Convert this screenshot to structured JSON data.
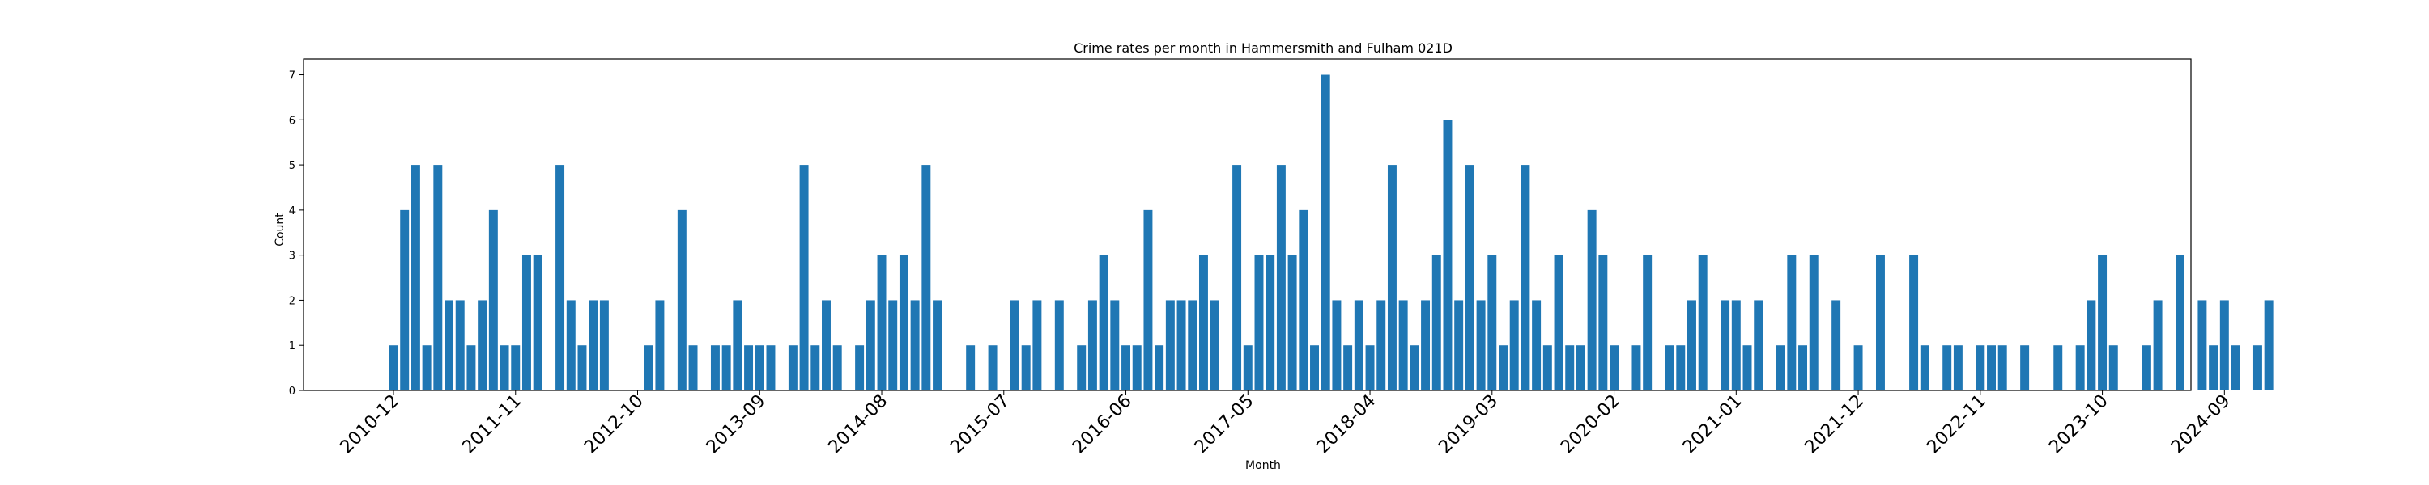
{
  "chart_data": {
    "type": "bar",
    "title": "Crime rates per month in Hammersmith and Fulham 021D",
    "xlabel": "Month",
    "ylabel": "Count",
    "ylim": [
      0,
      7.35
    ],
    "yticks": [
      0,
      1,
      2,
      3,
      4,
      5,
      6,
      7
    ],
    "xtick_labels": [
      "2010-12",
      "2011-11",
      "2012-10",
      "2013-09",
      "2014-08",
      "2015-07",
      "2016-06",
      "2017-05",
      "2018-04",
      "2019-03",
      "2020-02",
      "2021-01",
      "2021-12",
      "2022-11",
      "2023-10",
      "2024-09"
    ],
    "grid": false,
    "legend": "none",
    "bar_color": "#1f77b4",
    "months": [
      "2010-12",
      "2011-01",
      "2011-02",
      "2011-03",
      "2011-04",
      "2011-05",
      "2011-06",
      "2011-07",
      "2011-08",
      "2011-09",
      "2011-10",
      "2011-11",
      "2011-12",
      "2012-01",
      "2012-02",
      "2012-03",
      "2012-04",
      "2012-05",
      "2012-06",
      "2012-07",
      "2012-08",
      "2012-09",
      "2012-10",
      "2012-11",
      "2012-12",
      "2013-01",
      "2013-02",
      "2013-03",
      "2013-04",
      "2013-05",
      "2013-06",
      "2013-07",
      "2013-08",
      "2013-09",
      "2013-10",
      "2013-11",
      "2013-12",
      "2014-01",
      "2014-02",
      "2014-03",
      "2014-04",
      "2014-05",
      "2014-06",
      "2014-07",
      "2014-08",
      "2014-09",
      "2014-10",
      "2014-11",
      "2014-12",
      "2015-01",
      "2015-02",
      "2015-03",
      "2015-04",
      "2015-05",
      "2015-06",
      "2015-07",
      "2015-08",
      "2015-09",
      "2015-10",
      "2015-11",
      "2015-12",
      "2016-01",
      "2016-02",
      "2016-03",
      "2016-04",
      "2016-05",
      "2016-06",
      "2016-07",
      "2016-08",
      "2016-09",
      "2016-10",
      "2016-11",
      "2016-12",
      "2017-01",
      "2017-02",
      "2017-03",
      "2017-04",
      "2017-05",
      "2017-06",
      "2017-07",
      "2017-08",
      "2017-09",
      "2017-10",
      "2017-11",
      "2017-12",
      "2018-01",
      "2018-02",
      "2018-03",
      "2018-04",
      "2018-05",
      "2018-06",
      "2018-07",
      "2018-08",
      "2018-09",
      "2018-10",
      "2018-11",
      "2018-12",
      "2019-01",
      "2019-02",
      "2019-03",
      "2019-04",
      "2019-05",
      "2019-06",
      "2019-07",
      "2019-08",
      "2019-09",
      "2019-10",
      "2019-11",
      "2019-12",
      "2020-01",
      "2020-02",
      "2020-03",
      "2020-04",
      "2020-05",
      "2020-06",
      "2020-07",
      "2020-08",
      "2020-09",
      "2020-10",
      "2020-11",
      "2020-12",
      "2021-01",
      "2021-02",
      "2021-03",
      "2021-04",
      "2021-05",
      "2021-06",
      "2021-07",
      "2021-08",
      "2021-09",
      "2021-10",
      "2021-11",
      "2021-12",
      "2022-01",
      "2022-02",
      "2022-03",
      "2022-04",
      "2022-05",
      "2022-06",
      "2022-07",
      "2022-08",
      "2022-09",
      "2022-10",
      "2022-11",
      "2022-12",
      "2023-01",
      "2023-02",
      "2023-03",
      "2023-04",
      "2023-05",
      "2023-06",
      "2023-07",
      "2023-08",
      "2023-09",
      "2023-10",
      "2023-11",
      "2023-12",
      "2024-01",
      "2024-02",
      "2024-03",
      "2024-04",
      "2024-05",
      "2024-06",
      "2024-07",
      "2024-08",
      "2024-09",
      "2024-10",
      "2024-11",
      "2024-12",
      "2025-01"
    ],
    "values": [
      1,
      4,
      5,
      1,
      5,
      2,
      2,
      1,
      2,
      4,
      1,
      1,
      3,
      3,
      0,
      5,
      2,
      1,
      2,
      2,
      0,
      0,
      0,
      1,
      2,
      0,
      4,
      1,
      0,
      1,
      1,
      2,
      1,
      1,
      1,
      0,
      1,
      5,
      1,
      2,
      1,
      0,
      1,
      2,
      3,
      2,
      3,
      2,
      5,
      2,
      0,
      0,
      1,
      0,
      1,
      0,
      2,
      1,
      2,
      0,
      2,
      0,
      1,
      2,
      3,
      2,
      1,
      1,
      4,
      1,
      2,
      2,
      2,
      3,
      2,
      0,
      5,
      1,
      3,
      3,
      5,
      3,
      4,
      1,
      7,
      2,
      1,
      2,
      1,
      2,
      5,
      2,
      1,
      2,
      3,
      6,
      2,
      5,
      2,
      3,
      1,
      2,
      5,
      2,
      1,
      3,
      1,
      1,
      4,
      3,
      1,
      0,
      1,
      3,
      0,
      1,
      1,
      2,
      3,
      0,
      2,
      2,
      1,
      2,
      0,
      1,
      3,
      1,
      3,
      0,
      2,
      0,
      1,
      0,
      3,
      0,
      0,
      3,
      1,
      0,
      1,
      1,
      0,
      1,
      1,
      1,
      0,
      1,
      0,
      0,
      1,
      0,
      1,
      2,
      3,
      1,
      0,
      0,
      1,
      2,
      0,
      3,
      0,
      2,
      1,
      2,
      1,
      0,
      1,
      2
    ]
  }
}
